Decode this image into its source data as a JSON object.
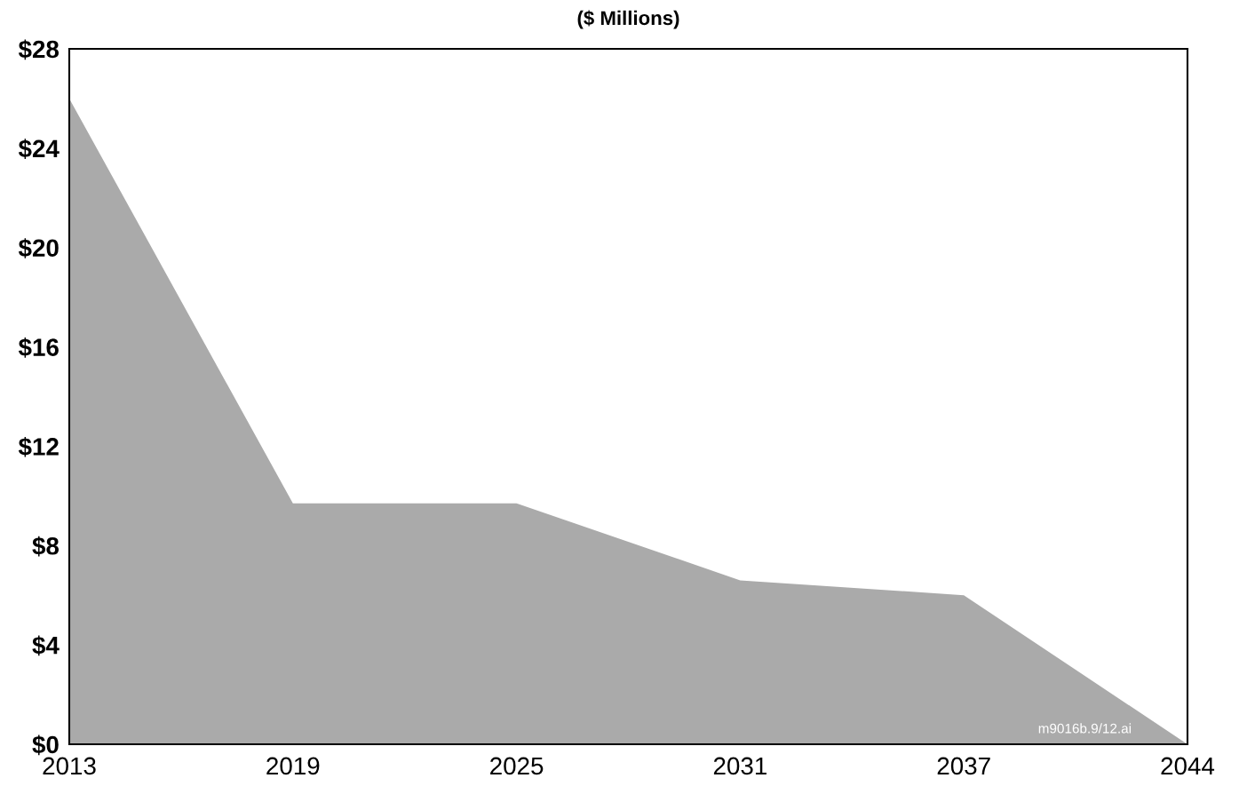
{
  "chart_data": {
    "type": "area",
    "title": "($ Millions)",
    "categories": [
      "2013",
      "2019",
      "2025",
      "2031",
      "2037",
      "2044"
    ],
    "values": [
      26,
      9.7,
      9.7,
      6.6,
      6.0,
      0
    ],
    "color": "#aaaaaa",
    "ylim": [
      0,
      28
    ],
    "yticks": [
      {
        "value": 0,
        "label": "$0"
      },
      {
        "value": 4,
        "label": "$4"
      },
      {
        "value": 8,
        "label": "$8"
      },
      {
        "value": 12,
        "label": "$12"
      },
      {
        "value": 16,
        "label": "$16"
      },
      {
        "value": 20,
        "label": "$20"
      },
      {
        "value": 24,
        "label": "$24"
      },
      {
        "value": 28,
        "label": "$28"
      }
    ],
    "grid": false,
    "legend": false,
    "annotations": [
      "m9016b.9/12.ai"
    ]
  }
}
